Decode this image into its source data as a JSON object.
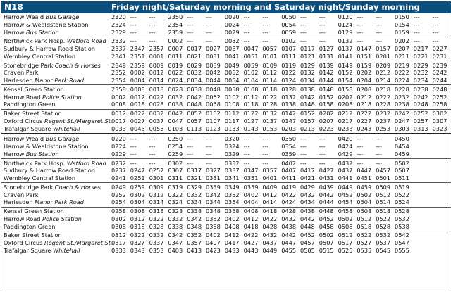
{
  "route": "N18",
  "title": "Friday night/Saturday morning and Saturday night/Sunday morning",
  "sections": [
    {
      "rows": [
        {
          "name": "Harrow Weald",
          "sub": "Bus Garage",
          "times": [
            "2320",
            "---",
            "---",
            "2350",
            "---",
            "---",
            "0020",
            "---",
            "---",
            "0050",
            "---",
            "---",
            "0120",
            "---",
            "---",
            "0150",
            "---",
            "---"
          ]
        },
        {
          "name": "Harrow & Wealdstone Station",
          "sub": "",
          "times": [
            "2324",
            "---",
            "---",
            "2354",
            "---",
            "---",
            "0024",
            "---",
            "---",
            "0054",
            "---",
            "---",
            "0124",
            "---",
            "---",
            "0154",
            "---",
            "---"
          ]
        },
        {
          "name": "Harrow",
          "sub": "Bus Station",
          "times": [
            "2329",
            "---",
            "---",
            "2359",
            "---",
            "---",
            "0029",
            "---",
            "---",
            "0059",
            "---",
            "---",
            "0129",
            "---",
            "---",
            "0159",
            "---",
            "---"
          ]
        },
        {
          "name": "Northwick Park Hosp.",
          "sub": "Watford Road",
          "times": [
            "2332",
            "---",
            "---",
            "0002",
            "---",
            "---",
            "0032",
            "---",
            "---",
            "0102",
            "---",
            "---",
            "0132",
            "---",
            "---",
            "0202",
            "---",
            "---"
          ]
        },
        {
          "name": "Sudbury & Harrow Road Station",
          "sub": "",
          "times": [
            "2337",
            "2347",
            "2357",
            "0007",
            "0017",
            "0027",
            "0037",
            "0047",
            "0057",
            "0107",
            "0117",
            "0127",
            "0137",
            "0147",
            "0157",
            "0207",
            "0217",
            "0227"
          ]
        },
        {
          "name": "Wembley Central Station",
          "sub": "",
          "times": [
            "2341",
            "2351",
            "0001",
            "0011",
            "0021",
            "0031",
            "0041",
            "0051",
            "0101",
            "0111",
            "0121",
            "0131",
            "0141",
            "0151",
            "0201",
            "0211",
            "0221",
            "0231"
          ]
        },
        {
          "name": "Stonebridge Park",
          "sub": "Coach & Horses",
          "times": [
            "2349",
            "2359",
            "0009",
            "0019",
            "0029",
            "0039",
            "0049",
            "0059",
            "0109",
            "0119",
            "0129",
            "0139",
            "0149",
            "0159",
            "0209",
            "0219",
            "0229",
            "0239"
          ]
        },
        {
          "name": "Craven Park",
          "sub": "",
          "times": [
            "2352",
            "0002",
            "0012",
            "0022",
            "0032",
            "0042",
            "0052",
            "0102",
            "0112",
            "0122",
            "0132",
            "0142",
            "0152",
            "0202",
            "0212",
            "0222",
            "0232",
            "0242"
          ]
        },
        {
          "name": "Harlesden",
          "sub": "Manor Park Road",
          "times": [
            "2354",
            "0004",
            "0014",
            "0024",
            "0034",
            "0044",
            "0054",
            "0104",
            "0114",
            "0124",
            "0134",
            "0144",
            "0154",
            "0204",
            "0214",
            "0224",
            "0234",
            "0244"
          ]
        },
        {
          "name": "Kensal Green Station",
          "sub": "",
          "times": [
            "2358",
            "0008",
            "0018",
            "0028",
            "0038",
            "0048",
            "0058",
            "0108",
            "0118",
            "0128",
            "0138",
            "0148",
            "0158",
            "0208",
            "0218",
            "0228",
            "0238",
            "0248"
          ]
        },
        {
          "name": "Harrow Road",
          "sub": "Police Station",
          "times": [
            "0002",
            "0012",
            "0022",
            "0032",
            "0042",
            "0052",
            "0102",
            "0112",
            "0122",
            "0132",
            "0142",
            "0152",
            "0202",
            "0212",
            "0222",
            "0232",
            "0242",
            "0252"
          ]
        },
        {
          "name": "Paddington Green",
          "sub": "",
          "times": [
            "0008",
            "0018",
            "0028",
            "0038",
            "0048",
            "0058",
            "0108",
            "0118",
            "0128",
            "0138",
            "0148",
            "0158",
            "0208",
            "0218",
            "0228",
            "0238",
            "0248",
            "0258"
          ]
        },
        {
          "name": "Baker Street Station",
          "sub": "",
          "times": [
            "0012",
            "0022",
            "0032",
            "0042",
            "0052",
            "0102",
            "0112",
            "0122",
            "0132",
            "0142",
            "0152",
            "0202",
            "0212",
            "0222",
            "0232",
            "0242",
            "0252",
            "0302"
          ]
        },
        {
          "name": "Oxford Circus",
          "sub": "Regent St./Margaret St.",
          "times": [
            "0017",
            "0027",
            "0037",
            "0047",
            "0057",
            "0107",
            "0117",
            "0127",
            "0137",
            "0147",
            "0157",
            "0207",
            "0217",
            "0227",
            "0237",
            "0247",
            "0257",
            "0307"
          ]
        },
        {
          "name": "Trafalgar Square",
          "sub": "Whitehall",
          "times": [
            "0033",
            "0043",
            "0053",
            "0103",
            "0113",
            "0123",
            "0133",
            "0143",
            "0153",
            "0203",
            "0213",
            "0223",
            "0233",
            "0243",
            "0253",
            "0303",
            "0313",
            "0323"
          ]
        }
      ]
    },
    {
      "rows": [
        {
          "name": "Harrow Weald",
          "sub": "Bus Garage",
          "times": [
            "0220",
            "---",
            "---",
            "0250",
            "---",
            "---",
            "0320",
            "---",
            "---",
            "0350",
            "---",
            "---",
            "0420",
            "---",
            "---",
            "0450"
          ]
        },
        {
          "name": "Harrow & Wealdstone Station",
          "sub": "",
          "times": [
            "0224",
            "---",
            "---",
            "0254",
            "---",
            "---",
            "0324",
            "---",
            "---",
            "0354",
            "---",
            "---",
            "0424",
            "---",
            "---",
            "0454"
          ]
        },
        {
          "name": "Harrow",
          "sub": "Bus Station",
          "times": [
            "0229",
            "---",
            "---",
            "0259",
            "---",
            "---",
            "0329",
            "---",
            "---",
            "0359",
            "---",
            "---",
            "0429",
            "---",
            "---",
            "0459"
          ]
        },
        {
          "name": "Northwick Park Hosp.",
          "sub": "Watford Road",
          "times": [
            "0232",
            "---",
            "---",
            "0302",
            "---",
            "---",
            "0332",
            "---",
            "---",
            "0402",
            "---",
            "---",
            "0432",
            "---",
            "---",
            "0502"
          ]
        },
        {
          "name": "Sudbury & Harrow Road Station",
          "sub": "",
          "times": [
            "0237",
            "0247",
            "0257",
            "0307",
            "0317",
            "0327",
            "0337",
            "0347",
            "0357",
            "0407",
            "0417",
            "0427",
            "0437",
            "0447",
            "0457",
            "0507"
          ]
        },
        {
          "name": "Wembley Central Station",
          "sub": "",
          "times": [
            "0241",
            "0251",
            "0301",
            "0311",
            "0321",
            "0331",
            "0341",
            "0351",
            "0401",
            "0411",
            "0421",
            "0431",
            "0441",
            "0451",
            "0501",
            "0511"
          ]
        },
        {
          "name": "Stonebridge Park",
          "sub": "Coach & Horses",
          "times": [
            "0249",
            "0259",
            "0309",
            "0319",
            "0329",
            "0339",
            "0349",
            "0359",
            "0409",
            "0419",
            "0429",
            "0439",
            "0449",
            "0459",
            "0509",
            "0519"
          ]
        },
        {
          "name": "Craven Park",
          "sub": "",
          "times": [
            "0252",
            "0302",
            "0312",
            "0322",
            "0332",
            "0342",
            "0352",
            "0402",
            "0412",
            "0422",
            "0432",
            "0442",
            "0452",
            "0502",
            "0512",
            "0522"
          ]
        },
        {
          "name": "Harlesden",
          "sub": "Manor Park Road",
          "times": [
            "0254",
            "0304",
            "0314",
            "0324",
            "0334",
            "0344",
            "0354",
            "0404",
            "0414",
            "0424",
            "0434",
            "0444",
            "0454",
            "0504",
            "0514",
            "0524"
          ]
        },
        {
          "name": "Kensal Green Station",
          "sub": "",
          "times": [
            "0258",
            "0308",
            "0318",
            "0328",
            "0338",
            "0348",
            "0358",
            "0408",
            "0418",
            "0428",
            "0438",
            "0448",
            "0458",
            "0508",
            "0518",
            "0528"
          ]
        },
        {
          "name": "Harrow Road",
          "sub": "Police Station",
          "times": [
            "0302",
            "0312",
            "0322",
            "0332",
            "0342",
            "0352",
            "0402",
            "0412",
            "0422",
            "0432",
            "0442",
            "0452",
            "0502",
            "0512",
            "0522",
            "0532"
          ]
        },
        {
          "name": "Paddington Green",
          "sub": "",
          "times": [
            "0308",
            "0318",
            "0328",
            "0338",
            "0348",
            "0358",
            "0408",
            "0418",
            "0428",
            "0438",
            "0448",
            "0458",
            "0508",
            "0518",
            "0528",
            "0538"
          ]
        },
        {
          "name": "Baker Street Station",
          "sub": "",
          "times": [
            "0312",
            "0322",
            "0332",
            "0342",
            "0352",
            "0402",
            "0412",
            "0422",
            "0432",
            "0442",
            "0452",
            "0502",
            "0512",
            "0522",
            "0532",
            "0542"
          ]
        },
        {
          "name": "Oxford Circus",
          "sub": "Regent St./Margaret St.",
          "times": [
            "0317",
            "0327",
            "0337",
            "0347",
            "0357",
            "0407",
            "0417",
            "0427",
            "0437",
            "0447",
            "0457",
            "0507",
            "0517",
            "0527",
            "0537",
            "0547"
          ]
        },
        {
          "name": "Trafalgar Square",
          "sub": "Whitehall",
          "times": [
            "0333",
            "0343",
            "0353",
            "0403",
            "0413",
            "0423",
            "0433",
            "0443",
            "0449",
            "0455",
            "0505",
            "0515",
            "0525",
            "0535",
            "0545",
            "0555"
          ]
        }
      ]
    }
  ]
}
